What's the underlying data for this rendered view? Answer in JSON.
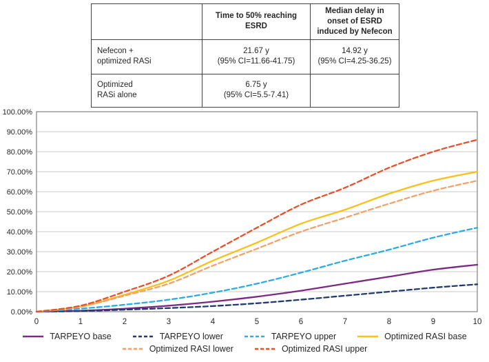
{
  "table": {
    "header": {
      "col1": "",
      "col2": "Time to 50% reaching ESRD",
      "col3_line1": "Median delay in onset of ESRD",
      "col3_line2": "induced by Nefecon"
    },
    "rows": [
      {
        "label_line1": "Nefecon +",
        "label_line2": "optimized RASi",
        "time_value": "21.67 y",
        "time_ci": "(95% CI=11.66-41.75)",
        "delay_value": "14.92 y",
        "delay_ci": "(95% CI=4.25-36.25)"
      },
      {
        "label_line1": "Optimized",
        "label_line2": "RASi alone",
        "time_value": "6.75 y",
        "time_ci": "(95% CI=5.5-7.41)",
        "delay_value": "",
        "delay_ci": ""
      }
    ]
  },
  "chart_data": {
    "type": "line",
    "title": "",
    "xlabel": "",
    "ylabel": "",
    "x": [
      0,
      1,
      2,
      3,
      4,
      5,
      6,
      7,
      8,
      9,
      10
    ],
    "xlim": [
      0,
      10
    ],
    "ylim": [
      0,
      100
    ],
    "grid": true,
    "legend_position": "bottom",
    "xtick_labels": [
      "0",
      "1",
      "2",
      "3",
      "4",
      "5",
      "6",
      "7",
      "8",
      "9",
      "10"
    ],
    "ytick_labels_top_to_bottom": [
      "100.00%",
      "90.00%",
      "80.00%",
      "70.00%",
      "60.00%",
      "50.00%",
      "40.00%",
      "30.00%",
      "20.00%",
      "10.00%",
      "0.00%"
    ],
    "colors": {
      "gridline": "#c9c9c9",
      "plot_border": "#808080",
      "tick_text": "#262626"
    },
    "series": [
      {
        "name": "TARPEYO base",
        "color": "#7b2a82",
        "style": "solid",
        "values": [
          0,
          0.5,
          1.5,
          3.0,
          5.0,
          7.5,
          10.5,
          14.0,
          17.5,
          21.0,
          23.5
        ]
      },
      {
        "name": "TARPEYO lower",
        "color": "#1f3a70",
        "style": "dashed",
        "values": [
          0,
          0.3,
          1.0,
          1.8,
          2.8,
          4.2,
          6.0,
          8.0,
          10.0,
          12.0,
          13.7
        ]
      },
      {
        "name": "TARPEYO upper",
        "color": "#2aabe2",
        "style": "dashed",
        "values": [
          0,
          1.5,
          3.5,
          6.0,
          9.5,
          14.0,
          19.5,
          25.5,
          31.0,
          37.0,
          42.0
        ]
      },
      {
        "name": "Optimized RASI base",
        "color": "#fdbf17",
        "style": "solid",
        "values": [
          0,
          2.5,
          8.5,
          15.5,
          25.5,
          34.5,
          44.0,
          51.0,
          59.0,
          65.5,
          70.0
        ]
      },
      {
        "name": "Optimized RASI lower",
        "color": "#f2a269",
        "style": "dashed",
        "values": [
          0,
          2.5,
          8.0,
          14.0,
          23.0,
          31.5,
          40.0,
          47.0,
          54.0,
          60.5,
          65.5
        ]
      },
      {
        "name": "Optimized RASI upper",
        "color": "#e8502a",
        "style": "dashed",
        "values": [
          0,
          3.0,
          10.0,
          18.0,
          30.0,
          42.0,
          53.5,
          62.0,
          72.0,
          80.0,
          86.0
        ]
      }
    ],
    "legend_rows": [
      [
        0,
        1,
        2,
        3
      ],
      [
        4,
        5
      ]
    ]
  }
}
